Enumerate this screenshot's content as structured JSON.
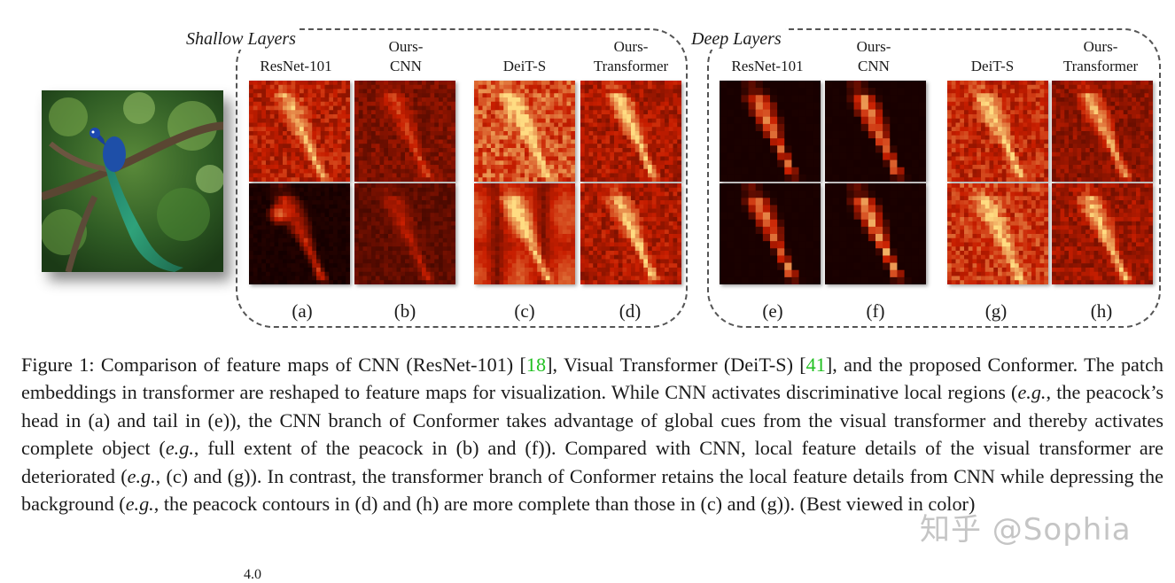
{
  "figure": {
    "groups": [
      {
        "title": "Shallow Layers"
      },
      {
        "title": "Deep Layers"
      }
    ],
    "columns": [
      {
        "head": "ResNet-101",
        "label": "(a)",
        "label2": "(e)"
      },
      {
        "head": "Ours-\nCNN",
        "label": "(b)",
        "label2": "(f)"
      },
      {
        "head": "DeiT-S",
        "label": "(c)",
        "label2": "(g)"
      },
      {
        "head": "Ours-\nTransformer",
        "label": "(d)",
        "label2": "(h)"
      }
    ],
    "colors": {
      "heat_dark": "#1a0000",
      "heat_mid": "#b52000",
      "heat_bright": "#ffd080",
      "frame": "#555555"
    }
  },
  "caption": {
    "p1": "Figure 1:   Comparison of feature maps of CNN (ResNet-101) [",
    "c1": "18",
    "p2": "], Visual Transformer (DeiT-S) [",
    "c2": "41",
    "p3": "], and the proposed Conformer.  The patch embeddings in transformer are reshaped to feature maps for visualization.  While CNN activates discriminative local regions (",
    "eg": "e.g.",
    "p4": ", the peacock’s head in (a) and tail in (e)), the CNN branch of Conformer takes advantage of global cues from the visual transformer and thereby activates complete object (",
    "p5": ", full extent of the peacock in (b) and (f)).  Compared with CNN, local feature details of the visual transformer are deteriorated (",
    "p6": ", (c) and (g)).  In contrast, the transformer branch of Conformer retains the local feature details from CNN while depressing the background (",
    "p7": ", the peacock contours in (d) and (h) are more complete than those in (c) and (g)). (Best viewed in color)"
  },
  "watermark": "知乎 @Sophia",
  "page_fragment": "4.0"
}
